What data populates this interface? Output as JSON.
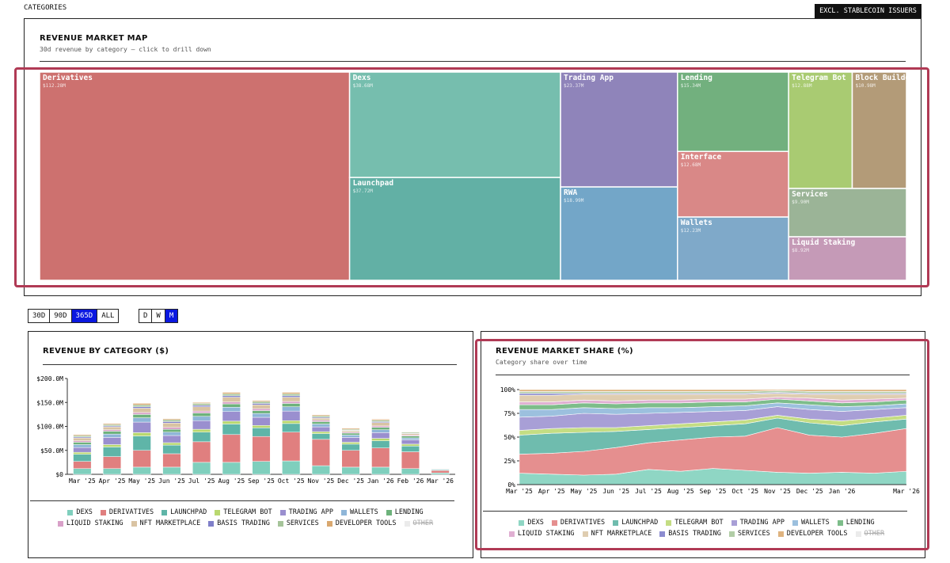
{
  "header": {
    "title": "CATEGORIES",
    "toggle": "EXCL. STABLECOIN ISSUERS"
  },
  "controls": {
    "ranges": [
      "30D",
      "90D",
      "365D",
      "ALL"
    ],
    "active_range": "365D",
    "intervals": [
      "D",
      "W",
      "M"
    ],
    "active_interval": "M"
  },
  "chart_data": [
    {
      "type": "treemap",
      "title": "REVENUE MARKET MAP",
      "subtitle": "30d revenue by category — click to drill down",
      "categories": [
        "Derivatives",
        "Dexs",
        "Launchpad",
        "Trading App",
        "RWA",
        "Lending",
        "Interface",
        "Wallets",
        "Telegram Bot",
        "Block Builde…",
        "Services",
        "Liquid Staking"
      ],
      "values": [
        112.28,
        38.68,
        37.72,
        23.37,
        18.99,
        15.34,
        12.68,
        12.23,
        12.88,
        10.98,
        9.9,
        8.92
      ],
      "value_labels": [
        "$112.28M",
        "$38.68M",
        "$37.72M",
        "$23.37M",
        "$18.99M",
        "$15.34M",
        "$12.68M",
        "$12.23M",
        "$12.88M",
        "$10.98M",
        "$9.90M",
        "$8.92M"
      ],
      "colors": [
        "#cd716f",
        "#76beae",
        "#62b0a5",
        "#8f84ba",
        "#73a6c8",
        "#72b07e",
        "#d98887",
        "#7fa9c9",
        "#a9cb72",
        "#b39b78",
        "#9bb497",
        "#c59ab7"
      ]
    },
    {
      "type": "stacked_bar",
      "title": "REVENUE BY CATEGORY ($)",
      "categories": [
        "Mar '25",
        "Apr '25",
        "May '25",
        "Jun '25",
        "Jul '25",
        "Aug '25",
        "Sep '25",
        "Oct '25",
        "Nov '25",
        "Dec '25",
        "Jan '26",
        "Feb '26",
        "Mar '26"
      ],
      "ylim": [
        0,
        200
      ],
      "yticks": [
        {
          "value": 0,
          "label": "$0"
        },
        {
          "value": 50,
          "label": "$50.0M"
        },
        {
          "value": 100,
          "label": "$100.0M"
        },
        {
          "value": 150,
          "label": "$150.0M"
        },
        {
          "value": 200,
          "label": "$200.0M"
        }
      ],
      "series": [
        {
          "name": "DEXS",
          "color": "#7fcfbd",
          "values": [
            12,
            12,
            15,
            15,
            25,
            25,
            27,
            28,
            18,
            15,
            15,
            12,
            3
          ]
        },
        {
          "name": "DERIVATIVES",
          "color": "#e07f7f",
          "values": [
            15,
            25,
            35,
            28,
            43,
            58,
            52,
            60,
            55,
            35,
            40,
            35,
            5
          ]
        },
        {
          "name": "LAUNCHPAD",
          "color": "#5fb5a8",
          "values": [
            15,
            20,
            30,
            18,
            20,
            22,
            18,
            18,
            12,
            13,
            15,
            12,
            1.5
          ]
        },
        {
          "name": "TELEGRAM BOT",
          "color": "#b9d86f",
          "values": [
            4,
            5,
            7,
            5,
            6,
            6,
            5,
            6,
            4,
            4,
            5,
            4,
            0.5
          ]
        },
        {
          "name": "TRADING APP",
          "color": "#9a8fcf",
          "values": [
            10,
            15,
            22,
            15,
            18,
            20,
            17,
            20,
            10,
            10,
            12,
            9,
            1
          ]
        },
        {
          "name": "WALLETS",
          "color": "#8fb6d8",
          "values": [
            6,
            7,
            9,
            7,
            9,
            9,
            8,
            9,
            6,
            5,
            6,
            4,
            0.5
          ]
        },
        {
          "name": "LENDING",
          "color": "#6db27b",
          "values": [
            5,
            6,
            7,
            6,
            7,
            7,
            6,
            7,
            5,
            4,
            5,
            4,
            0.5
          ]
        },
        {
          "name": "LIQUID STAKING",
          "color": "#d8a0c8",
          "values": [
            3,
            3,
            4,
            4,
            4,
            4,
            4,
            4,
            3,
            2,
            3,
            2,
            0.3
          ]
        },
        {
          "name": "NFT MARKETPLACE",
          "color": "#d9c3a3",
          "values": [
            6,
            6,
            9,
            9,
            9,
            10,
            8,
            9,
            4,
            3,
            7,
            3,
            0.3
          ]
        },
        {
          "name": "BASIS TRADING",
          "color": "#7f7fc9",
          "values": [
            2,
            2,
            3,
            3,
            3,
            3,
            3,
            3,
            2,
            1,
            2,
            1,
            0.2
          ]
        },
        {
          "name": "SERVICES",
          "color": "#a6c49a",
          "values": [
            3,
            3,
            4,
            4,
            4,
            4,
            4,
            4,
            3,
            2,
            3,
            2,
            0.3
          ]
        },
        {
          "name": "DEVELOPER TOOLS",
          "color": "#d9a86f",
          "values": [
            2,
            2,
            3,
            2,
            2,
            3,
            2,
            3,
            2,
            2,
            2,
            1,
            0.1
          ]
        },
        {
          "name": "OTHER",
          "color": "#cccccc",
          "hidden": true,
          "values": [
            null,
            null,
            null,
            null,
            null,
            null,
            null,
            null,
            null,
            null,
            null,
            null,
            null
          ]
        }
      ]
    },
    {
      "type": "stacked_area",
      "title": "REVENUE MARKET SHARE (%)",
      "subtitle": "Category share over time",
      "categories": [
        "Mar '25",
        "Apr '25",
        "May '25",
        "Jun '25",
        "Jul '25",
        "Aug '25",
        "Sep '25",
        "Oct '25",
        "Nov '25",
        "Dec '25",
        "Jan '26",
        null,
        "Mar '26"
      ],
      "ylim": [
        0,
        100
      ],
      "yticks": [
        {
          "value": 0,
          "label": "0%"
        },
        {
          "value": 25,
          "label": "25%"
        },
        {
          "value": 50,
          "label": "50%"
        },
        {
          "value": 75,
          "label": "75%"
        },
        {
          "value": 100,
          "label": "100%"
        }
      ],
      "series": [
        {
          "name": "DEXS",
          "color": "#8fd6c4",
          "values": [
            12,
            11,
            10,
            11,
            16,
            14,
            17,
            15,
            13,
            12,
            13,
            12,
            14
          ]
        },
        {
          "name": "DERIVATIVES",
          "color": "#e58f8f",
          "values": [
            20,
            22,
            25,
            28,
            28,
            33,
            33,
            36,
            47,
            40,
            37,
            42,
            45
          ]
        },
        {
          "name": "LAUNCHPAD",
          "color": "#6fbcae",
          "values": [
            20,
            21,
            20,
            17,
            14,
            13,
            12,
            13,
            10,
            13,
            12,
            12,
            10
          ]
        },
        {
          "name": "TELEGRAM BOT",
          "color": "#c4dd83",
          "values": [
            5,
            5,
            5,
            4,
            4,
            4,
            4,
            4,
            3,
            4,
            5,
            4,
            4
          ]
        },
        {
          "name": "TRADING APP",
          "color": "#a89fd6",
          "values": [
            14,
            13,
            15,
            14,
            13,
            12,
            11,
            10,
            9,
            10,
            10,
            9,
            8
          ]
        },
        {
          "name": "WALLETS",
          "color": "#9cc0de",
          "values": [
            8,
            7,
            6,
            6,
            6,
            5,
            5,
            5,
            4,
            5,
            5,
            4,
            4
          ]
        },
        {
          "name": "LENDING",
          "color": "#7dbd8a",
          "values": [
            5,
            5,
            5,
            5,
            5,
            5,
            5,
            4,
            4,
            4,
            4,
            4,
            4
          ]
        },
        {
          "name": "LIQUID STAKING",
          "color": "#e0afd2",
          "values": [
            3,
            3,
            3,
            3,
            3,
            3,
            3,
            3,
            2,
            3,
            3,
            3,
            2
          ]
        },
        {
          "name": "NFT MARKETPLACE",
          "color": "#dfcdb0",
          "values": [
            7,
            7,
            6,
            7,
            6,
            6,
            5,
            5,
            4,
            4,
            6,
            5,
            4
          ]
        },
        {
          "name": "BASIS TRADING",
          "color": "#8c8cd0",
          "values": [
            2,
            2,
            1,
            1,
            1,
            1,
            1,
            1,
            1,
            1,
            1,
            1,
            1
          ]
        },
        {
          "name": "SERVICES",
          "color": "#b1cda6",
          "values": [
            2,
            2,
            2,
            2,
            2,
            2,
            2,
            2,
            2,
            2,
            2,
            2,
            2
          ]
        },
        {
          "name": "DEVELOPER TOOLS",
          "color": "#dfb37f",
          "values": [
            2,
            2,
            2,
            2,
            2,
            2,
            2,
            2,
            1,
            2,
            2,
            2,
            2
          ]
        },
        {
          "name": "OTHER",
          "color": "#cccccc",
          "hidden": true,
          "values": [
            null,
            null,
            null,
            null,
            null,
            null,
            null,
            null,
            null,
            null,
            null,
            null,
            null
          ]
        }
      ]
    }
  ]
}
